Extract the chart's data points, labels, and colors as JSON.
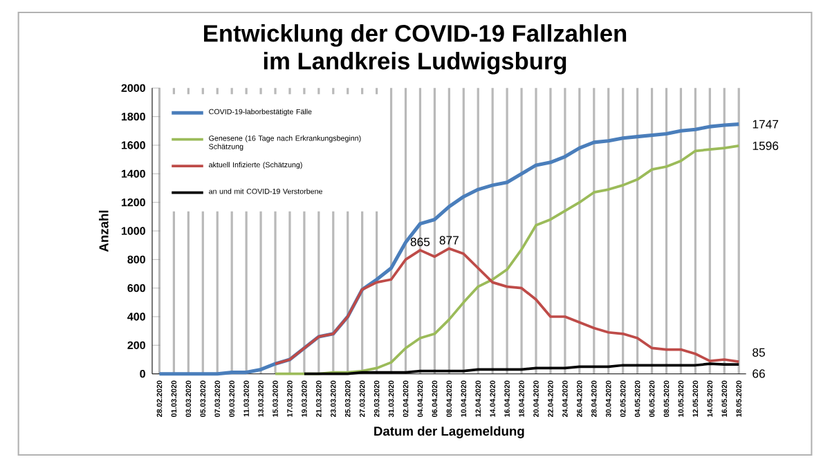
{
  "chart_data": {
    "type": "line",
    "title": "Entwicklung der COVID-19 Fallzahlen\nim Landkreis Ludwigsburg",
    "xlabel": "Datum der Lagemeldung",
    "ylabel": "Anzahl",
    "categories": [
      "28.02.2020",
      "01.03.2020",
      "03.03.2020",
      "05.03.2020",
      "07.03.2020",
      "09.03.2020",
      "11.03.2020",
      "13.03.2020",
      "15.03.2020",
      "17.03.2020",
      "19.03.2020",
      "21.03.2020",
      "23.03.2020",
      "25.03.2020",
      "27.03.2020",
      "29.03.2020",
      "31.03.2020",
      "02.04.2020",
      "04.04.2020",
      "06.04.2020",
      "08.04.2020",
      "10.04.2020",
      "12.04.2020",
      "14.04.2020",
      "16.04.2020",
      "18.04.2020",
      "20.04.2020",
      "22.04.2020",
      "24.04.2020",
      "26.04.2020",
      "28.04.2020",
      "30.04.2020",
      "02.05.2020",
      "04.05.2020",
      "06.05.2020",
      "08.05.2020",
      "10.05.2020",
      "12.05.2020",
      "14.05.2020",
      "16.05.2020",
      "18.05.2020"
    ],
    "ylim": [
      0,
      2000
    ],
    "yticks": [
      0,
      200,
      400,
      600,
      800,
      1000,
      1200,
      1400,
      1600,
      1800,
      2000
    ],
    "grid": "x",
    "legend": "top left",
    "marker": "none",
    "line_style": "solid",
    "series": [
      {
        "name": "COVID-19-laborbestätigte Fälle",
        "color": "#4a7ebb",
        "values": [
          0,
          0,
          0,
          0,
          0,
          10,
          10,
          30,
          70,
          100,
          180,
          260,
          280,
          400,
          590,
          660,
          740,
          920,
          1050,
          1080,
          1170,
          1240,
          1290,
          1320,
          1340,
          1400,
          1460,
          1480,
          1520,
          1580,
          1620,
          1630,
          1650,
          1660,
          1670,
          1680,
          1700,
          1710,
          1730,
          1740,
          1747
        ],
        "value_labels": [
          null,
          null,
          null,
          null,
          null,
          null,
          null,
          null,
          null,
          null,
          null,
          null,
          null,
          null,
          null,
          null,
          null,
          null,
          null,
          null,
          null,
          null,
          null,
          null,
          null,
          null,
          null,
          null,
          null,
          null,
          null,
          null,
          null,
          null,
          null,
          null,
          null,
          null,
          null,
          null,
          "1747"
        ]
      },
      {
        "name": "Genesene (16 Tage nach Erkrankungsbeginn) Schätzung",
        "color": "#9bbb59",
        "values": [
          null,
          null,
          null,
          null,
          null,
          null,
          null,
          null,
          0,
          0,
          0,
          0,
          10,
          10,
          20,
          40,
          80,
          180,
          250,
          280,
          380,
          500,
          610,
          660,
          730,
          870,
          1040,
          1080,
          1140,
          1200,
          1270,
          1290,
          1320,
          1360,
          1430,
          1450,
          1490,
          1560,
          1570,
          1580,
          1596
        ],
        "value_labels": [
          null,
          null,
          null,
          null,
          null,
          null,
          null,
          null,
          null,
          null,
          null,
          null,
          null,
          null,
          null,
          null,
          null,
          null,
          null,
          null,
          null,
          null,
          null,
          null,
          null,
          null,
          null,
          null,
          null,
          null,
          null,
          null,
          null,
          null,
          null,
          null,
          null,
          null,
          null,
          null,
          "1596"
        ]
      },
      {
        "name": "aktuell Infizierte (Schätzung)",
        "color": "#be4b48",
        "values": [
          null,
          null,
          null,
          null,
          null,
          null,
          null,
          null,
          70,
          100,
          180,
          260,
          280,
          400,
          590,
          640,
          660,
          800,
          865,
          820,
          877,
          840,
          740,
          640,
          610,
          600,
          520,
          400,
          400,
          360,
          320,
          290,
          280,
          250,
          180,
          170,
          170,
          140,
          90,
          100,
          85
        ],
        "value_labels": [
          null,
          null,
          null,
          null,
          null,
          null,
          null,
          null,
          null,
          null,
          null,
          null,
          null,
          null,
          null,
          null,
          null,
          null,
          "865",
          null,
          "877",
          null,
          null,
          null,
          null,
          null,
          null,
          null,
          null,
          null,
          null,
          null,
          null,
          null,
          null,
          null,
          null,
          null,
          null,
          null,
          "85"
        ]
      },
      {
        "name": "an und mit COVID-19 Verstorbene",
        "color": "#000000",
        "values": [
          null,
          null,
          null,
          null,
          null,
          null,
          null,
          null,
          null,
          null,
          0,
          0,
          0,
          0,
          10,
          10,
          10,
          10,
          20,
          20,
          20,
          20,
          30,
          30,
          30,
          30,
          40,
          40,
          40,
          50,
          50,
          50,
          60,
          60,
          60,
          60,
          60,
          60,
          70,
          66,
          66
        ],
        "value_labels": [
          null,
          null,
          null,
          null,
          null,
          null,
          null,
          null,
          null,
          null,
          null,
          null,
          null,
          null,
          null,
          null,
          null,
          null,
          null,
          null,
          null,
          null,
          null,
          null,
          null,
          null,
          null,
          null,
          null,
          null,
          null,
          null,
          null,
          null,
          null,
          null,
          null,
          null,
          null,
          null,
          "66"
        ]
      }
    ]
  }
}
